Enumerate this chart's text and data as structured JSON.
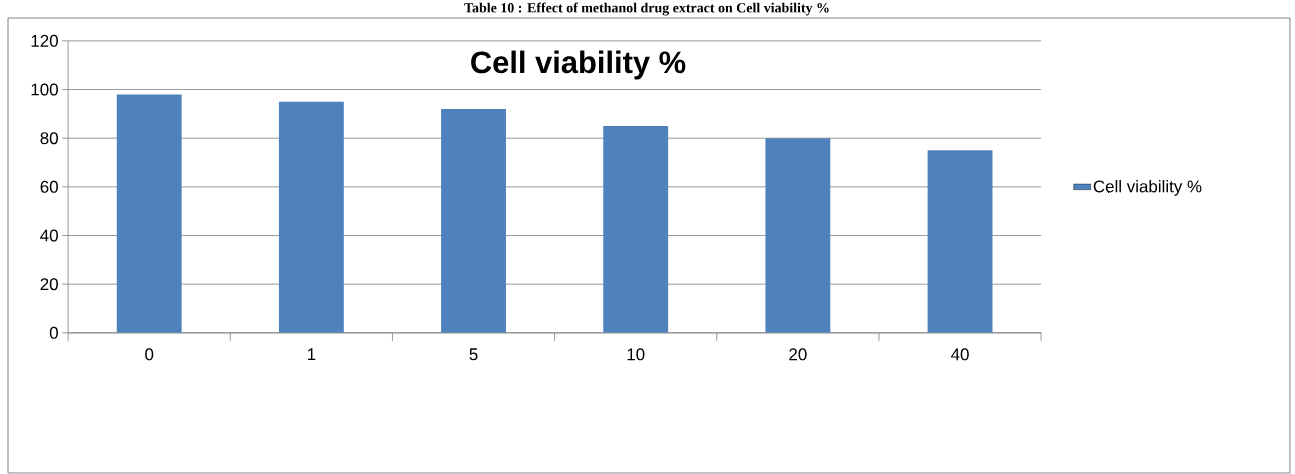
{
  "chart_data": {
    "type": "bar",
    "title": "Cell viability %",
    "annotations": [
      "Table 10 : Effect of methanol drug extract on Cell viability %"
    ],
    "categories": [
      "0",
      "1",
      "5",
      "10",
      "20",
      "40"
    ],
    "series": [
      {
        "name": "Cell viability %",
        "color": "#4f81bd",
        "values": [
          98,
          95,
          92,
          85,
          80,
          75
        ]
      }
    ],
    "ylim": [
      0,
      120
    ],
    "yticks": [
      0,
      20,
      40,
      60,
      80,
      100,
      120
    ],
    "grid": "y",
    "legend": "right"
  }
}
